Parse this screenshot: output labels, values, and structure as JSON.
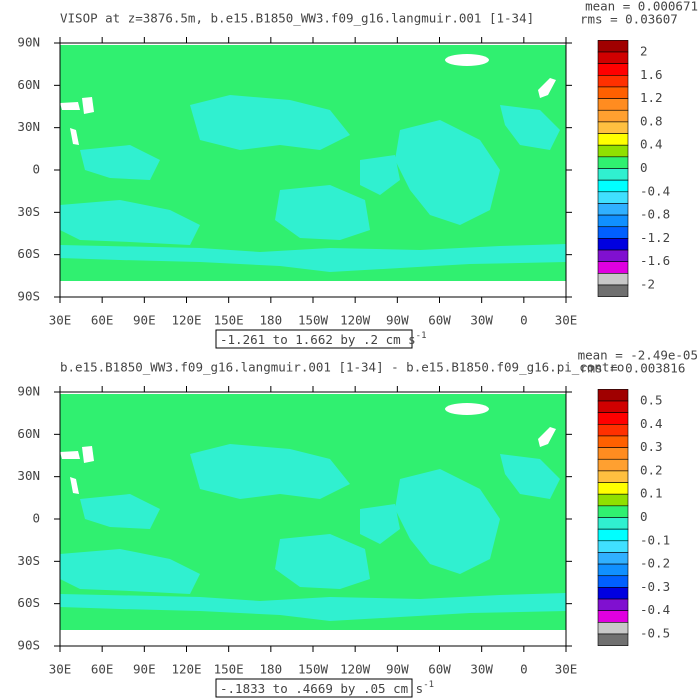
{
  "panels": [
    {
      "title": "VISOP at z=3876.5m, b.e15.B1850_WW3.f09_g16.langmuir.001 [1-34]",
      "mean": "mean = 0.000671",
      "rms": "rms = 0.03607",
      "range_label": "-1.261 to 1.662 by .2 cm s",
      "range_exponent": "-1",
      "colorbar_labels": [
        "2",
        "1.6",
        "1.2",
        "0.8",
        "0.4",
        "0",
        "-0.4",
        "-0.8",
        "-1.2",
        "-1.6",
        "-2"
      ]
    },
    {
      "title": "b.e15.B1850_WW3.f09_g16.langmuir.001 [1-34] - b.e15.B1850.f09_g16.pi_contro",
      "mean": "mean = -2.49e-05",
      "rms": "rms = 0.003816",
      "range_label": "-.1833 to .4669 by .05 cm s",
      "range_exponent": "-1",
      "colorbar_labels": [
        "0.5",
        "0.4",
        "0.3",
        "0.2",
        "0.1",
        "0",
        "-0.1",
        "-0.2",
        "-0.3",
        "-0.4",
        "-0.5"
      ]
    }
  ],
  "lat_labels": [
    "90N",
    "60N",
    "30N",
    "0",
    "30S",
    "60S",
    "90S"
  ],
  "lon_labels": [
    "30E",
    "60E",
    "90E",
    "120E",
    "150E",
    "180",
    "150W",
    "120W",
    "90W",
    "60W",
    "30W",
    "0",
    "30E"
  ],
  "colorbar_colors": [
    "#a00000",
    "#d00000",
    "#ff0000",
    "#ff3000",
    "#ff6000",
    "#ff8c20",
    "#ffa030",
    "#ffc040",
    "#ffff00",
    "#90e000",
    "#30f070",
    "#30f0d0",
    "#00ffff",
    "#40e0ff",
    "#30b0ff",
    "#1090ff",
    "#0060ff",
    "#0000e0",
    "#8010d0",
    "#e000e0",
    "#c8c8c8",
    "#707070"
  ]
}
